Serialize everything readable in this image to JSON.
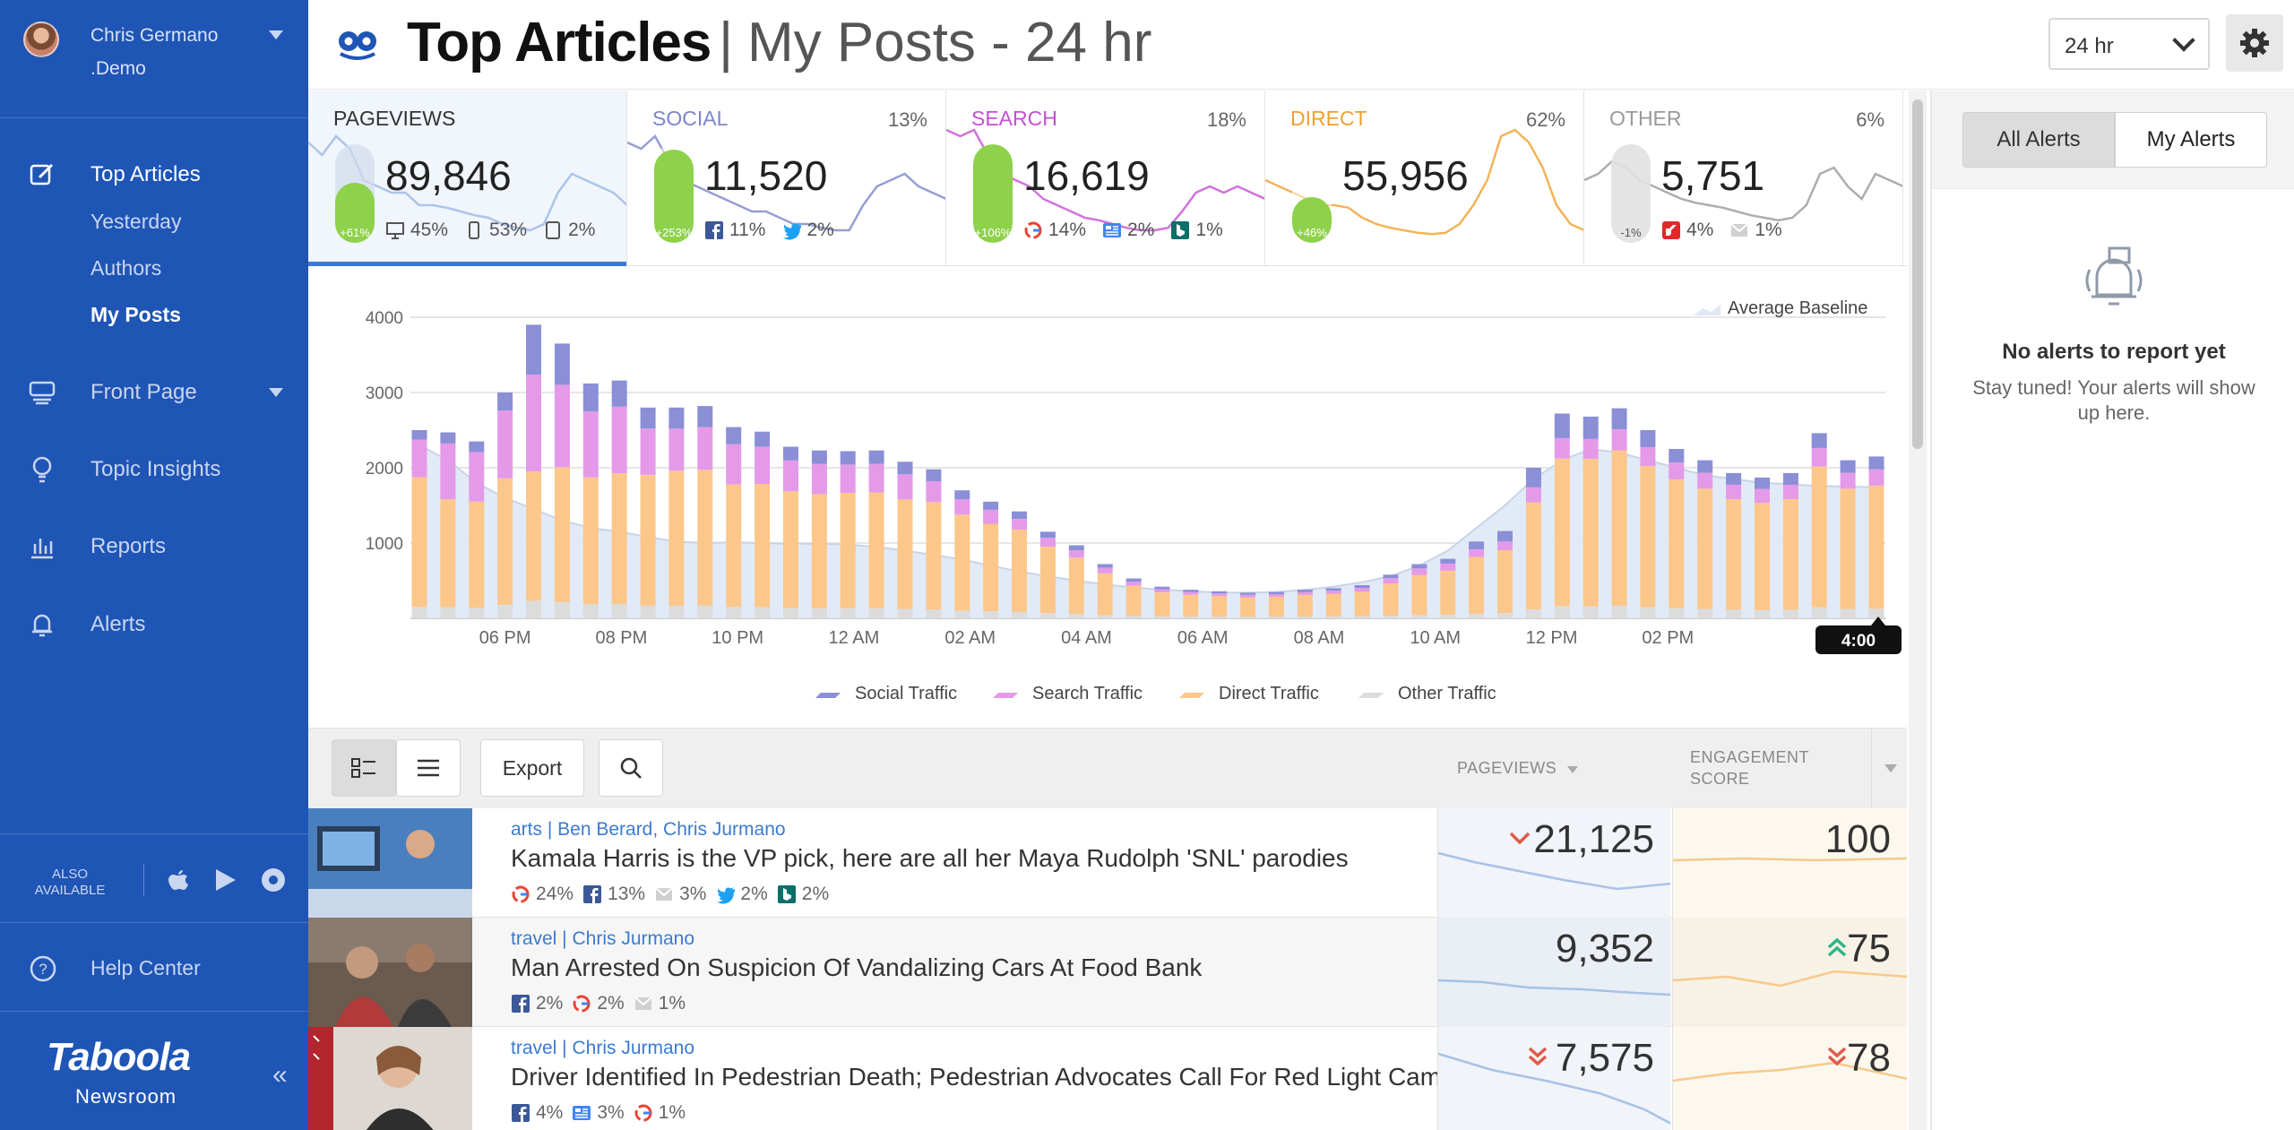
{
  "user": {
    "name": "Chris Germano",
    "org": ".Demo"
  },
  "nav": {
    "top_articles": "Top Articles",
    "sub": [
      "Yesterday",
      "Authors",
      "My Posts"
    ],
    "front_page": "Front Page",
    "topic_insights": "Topic Insights",
    "reports": "Reports",
    "alerts": "Alerts",
    "also_available": "ALSO AVAILABLE",
    "help_center": "Help Center",
    "brand": "Taboola",
    "brand_sub": "Newsroom"
  },
  "header": {
    "title": "Top Articles",
    "separator": "|",
    "subtitle": "My Posts - 24 hr",
    "range": "24 hr"
  },
  "stats": [
    {
      "title": "PAGEVIEWS",
      "pct": "",
      "value": "89,846",
      "bar_label": "+61%",
      "bar_fill": 0.61,
      "color": "#333333",
      "spark": "#b9cfee",
      "sources": [
        {
          "icon": "desktop-icon",
          "v": "45%"
        },
        {
          "icon": "mobile-icon",
          "v": "53%"
        },
        {
          "icon": "tablet-icon",
          "v": "2%"
        }
      ]
    },
    {
      "title": "SOCIAL",
      "pct": "13%",
      "value": "11,520",
      "bar_label": "+253%",
      "bar_fill": 0.95,
      "color": "#7b86c9",
      "spark": "#c7cbee",
      "sources": [
        {
          "icon": "facebook-icon",
          "v": "11%"
        },
        {
          "icon": "twitter-icon",
          "v": "2%"
        }
      ]
    },
    {
      "title": "SEARCH",
      "pct": "18%",
      "value": "16,619",
      "bar_label": "+106%",
      "bar_fill": 1.0,
      "color": "#c54fd1",
      "spark": "#f0c6f4",
      "sources": [
        {
          "icon": "google-icon",
          "v": "14%"
        },
        {
          "icon": "google-news-icon",
          "v": "2%"
        },
        {
          "icon": "bing-icon",
          "v": "1%"
        }
      ]
    },
    {
      "title": "DIRECT",
      "pct": "62%",
      "value": "55,956",
      "bar_label": "+46%",
      "bar_fill": 0.46,
      "color": "#f0a02e",
      "spark": "#fbdcaa",
      "sources": []
    },
    {
      "title": "OTHER",
      "pct": "6%",
      "value": "5,751",
      "bar_label": "-1%",
      "bar_fill": 0.0,
      "color": "#999999",
      "spark": "#dedede",
      "sources": [
        {
          "icon": "flipboard-icon",
          "v": "4%"
        },
        {
          "icon": "email-icon",
          "v": "1%"
        }
      ]
    }
  ],
  "chart_data": {
    "type": "bar",
    "stacked": true,
    "yticks": [
      1000,
      2000,
      3000,
      4000
    ],
    "ylim": [
      0,
      4000
    ],
    "xtick_labels": [
      "06 PM",
      "08 PM",
      "10 PM",
      "12 AM",
      "02 AM",
      "04 AM",
      "06 AM",
      "08 AM",
      "10 AM",
      "12 PM",
      "02 PM"
    ],
    "current_time": "4:00",
    "legend_top": "Average Baseline",
    "legend": [
      "Social Traffic",
      "Search Traffic",
      "Direct Traffic",
      "Other Traffic"
    ],
    "series_colors": {
      "social": "#8a8fd6",
      "search": "#e49ae8",
      "direct": "#fcc78a",
      "other": "#dcdcdc",
      "baseline": "#dfe8f6"
    },
    "totals": [
      2500,
      2470,
      2350,
      3000,
      3900,
      3650,
      3120,
      3160,
      2800,
      2800,
      2820,
      2540,
      2480,
      2280,
      2230,
      2220,
      2230,
      2080,
      1980,
      1700,
      1550,
      1420,
      1150,
      970,
      720,
      530,
      420,
      380,
      360,
      340,
      350,
      380,
      400,
      440,
      580,
      720,
      790,
      1020,
      1160,
      2000,
      2720,
      2680,
      2790,
      2500,
      2250,
      2100,
      1930,
      1870,
      1930,
      2460,
      2100,
      2150
    ],
    "social_pct": [
      0.05,
      0.06,
      0.06,
      0.08,
      0.17,
      0.15,
      0.12,
      0.11,
      0.1,
      0.1,
      0.1,
      0.09,
      0.08,
      0.08,
      0.08,
      0.08,
      0.08,
      0.08,
      0.08,
      0.07,
      0.07,
      0.07,
      0.07,
      0.07,
      0.07,
      0.08,
      0.08,
      0.08,
      0.08,
      0.08,
      0.08,
      0.08,
      0.08,
      0.08,
      0.08,
      0.08,
      0.08,
      0.1,
      0.12,
      0.13,
      0.12,
      0.11,
      0.1,
      0.09,
      0.08,
      0.08,
      0.08,
      0.08,
      0.08,
      0.08,
      0.08,
      0.08
    ],
    "search_pct": [
      0.2,
      0.3,
      0.28,
      0.3,
      0.33,
      0.3,
      0.28,
      0.28,
      0.22,
      0.2,
      0.2,
      0.21,
      0.2,
      0.18,
      0.18,
      0.17,
      0.17,
      0.16,
      0.14,
      0.12,
      0.12,
      0.1,
      0.1,
      0.1,
      0.1,
      0.1,
      0.1,
      0.1,
      0.1,
      0.1,
      0.1,
      0.1,
      0.1,
      0.12,
      0.12,
      0.12,
      0.12,
      0.1,
      0.1,
      0.1,
      0.1,
      0.1,
      0.1,
      0.1,
      0.1,
      0.1,
      0.1,
      0.1,
      0.1,
      0.1,
      0.1,
      0.1
    ],
    "other_pct": 0.06,
    "baseline": [
      2300,
      2100,
      1800,
      1600,
      1450,
      1300,
      1200,
      1150,
      1080,
      1020,
      1000,
      1010,
      1000,
      990,
      990,
      980,
      950,
      900,
      840,
      780,
      700,
      620,
      560,
      500,
      450,
      410,
      380,
      360,
      340,
      340,
      350,
      380,
      420,
      480,
      560,
      700,
      900,
      1200,
      1500,
      1850,
      2100,
      2250,
      2200,
      2100,
      2000,
      1900,
      1850,
      1800,
      1780,
      1760,
      1750,
      1740
    ]
  },
  "toolbar": {
    "export": "Export",
    "col_pageviews": "PAGEVIEWS",
    "col_engagement": "ENGAGEMENT SCORE"
  },
  "articles": [
    {
      "meta": "arts | Ben Berard, Chris Jurmano",
      "title": "Kamala Harris is the VP pick, here are all her Maya Rudolph 'SNL' parodies",
      "sources": [
        {
          "icon": "google-icon",
          "v": "24%"
        },
        {
          "icon": "facebook-icon",
          "v": "13%"
        },
        {
          "icon": "email-icon",
          "v": "3%"
        },
        {
          "icon": "twitter-icon",
          "v": "2%"
        },
        {
          "icon": "bing-icon",
          "v": "2%"
        }
      ],
      "pageviews": "21,125",
      "pv_trend": "down",
      "engagement": "100",
      "eng_trend": "none"
    },
    {
      "meta": "travel | Chris Jurmano",
      "title": "Man Arrested On Suspicion Of Vandalizing Cars At Food Bank",
      "sources": [
        {
          "icon": "facebook-icon",
          "v": "2%"
        },
        {
          "icon": "google-icon",
          "v": "2%"
        },
        {
          "icon": "email-icon",
          "v": "1%"
        }
      ],
      "pageviews": "9,352",
      "pv_trend": "none",
      "engagement": "75",
      "eng_trend": "up"
    },
    {
      "meta": "travel | Chris Jurmano",
      "title": "Driver Identified In Pedestrian Death; Pedestrian Advocates Call For Red Light Cameras",
      "sources": [
        {
          "icon": "facebook-icon",
          "v": "4%"
        },
        {
          "icon": "google-news-icon",
          "v": "3%"
        },
        {
          "icon": "google-icon",
          "v": "1%"
        }
      ],
      "pageviews": "7,575",
      "pv_trend": "down2",
      "engagement": "78",
      "eng_trend": "down2"
    }
  ],
  "alerts": {
    "tab_all": "All Alerts",
    "tab_mine": "My Alerts",
    "empty_title": "No alerts to report yet",
    "empty_sub": "Stay tuned! Your alerts will show up here."
  }
}
